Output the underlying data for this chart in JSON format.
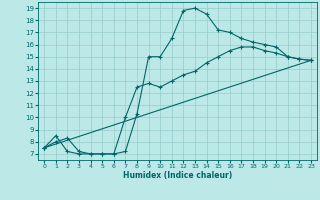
{
  "xlabel": "Humidex (Indice chaleur)",
  "xlim": [
    -0.5,
    23.5
  ],
  "ylim": [
    6.5,
    19.5
  ],
  "xticks": [
    0,
    1,
    2,
    3,
    4,
    5,
    6,
    7,
    8,
    9,
    10,
    11,
    12,
    13,
    14,
    15,
    16,
    17,
    18,
    19,
    20,
    21,
    22,
    23
  ],
  "yticks": [
    7,
    8,
    9,
    10,
    11,
    12,
    13,
    14,
    15,
    16,
    17,
    18,
    19
  ],
  "bg_color": "#bde8e8",
  "grid_color": "#99cccc",
  "line_color": "#006666",
  "line1_x": [
    0,
    1,
    2,
    3,
    4,
    5,
    6,
    7,
    8,
    9,
    10,
    11,
    12,
    13,
    14,
    15,
    16,
    17,
    18,
    19,
    20,
    21,
    22,
    23
  ],
  "line1_y": [
    7.5,
    8.5,
    7.2,
    7.0,
    7.0,
    7.0,
    7.0,
    7.2,
    10.3,
    15.0,
    15.0,
    16.5,
    18.8,
    19.0,
    18.5,
    17.2,
    17.0,
    16.5,
    16.2,
    16.0,
    15.8,
    15.0,
    14.8,
    14.7
  ],
  "line2_x": [
    0,
    1,
    2,
    3,
    4,
    5,
    6,
    7,
    8,
    9,
    10,
    11,
    12,
    13,
    14,
    15,
    16,
    17,
    18,
    19,
    20,
    21,
    22,
    23
  ],
  "line2_y": [
    7.5,
    8.0,
    8.3,
    7.2,
    7.0,
    7.0,
    7.0,
    10.0,
    12.5,
    12.8,
    12.5,
    13.0,
    13.5,
    13.8,
    14.5,
    15.0,
    15.5,
    15.8,
    15.8,
    15.5,
    15.3,
    15.0,
    14.8,
    14.7
  ],
  "line3_x": [
    0,
    23
  ],
  "line3_y": [
    7.5,
    14.7
  ]
}
